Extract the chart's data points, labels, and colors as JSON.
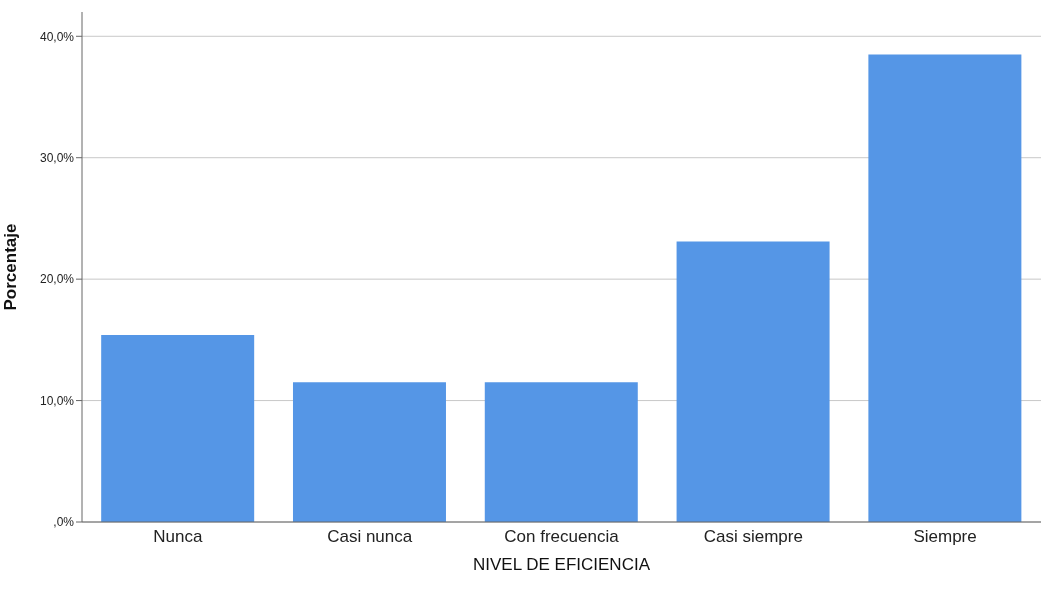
{
  "chart_data": {
    "type": "bar",
    "xlabel": "NIVEL DE EFICIENCIA",
    "ylabel": "Porcentaje",
    "categories": [
      "Nunca",
      "Casi nunca",
      "Con frecuencia",
      "Casi siempre",
      "Siempre"
    ],
    "values": [
      15.4,
      11.5,
      11.5,
      23.1,
      38.5
    ],
    "color": "#5596e6",
    "ylim": [
      0,
      42
    ],
    "yticks": [
      {
        "value": 0,
        "label": ",0%"
      },
      {
        "value": 10,
        "label": "10,0%"
      },
      {
        "value": 20,
        "label": "20,0%"
      },
      {
        "value": 30,
        "label": "30,0%"
      },
      {
        "value": 40,
        "label": "40,0%"
      }
    ],
    "grid": "y"
  }
}
